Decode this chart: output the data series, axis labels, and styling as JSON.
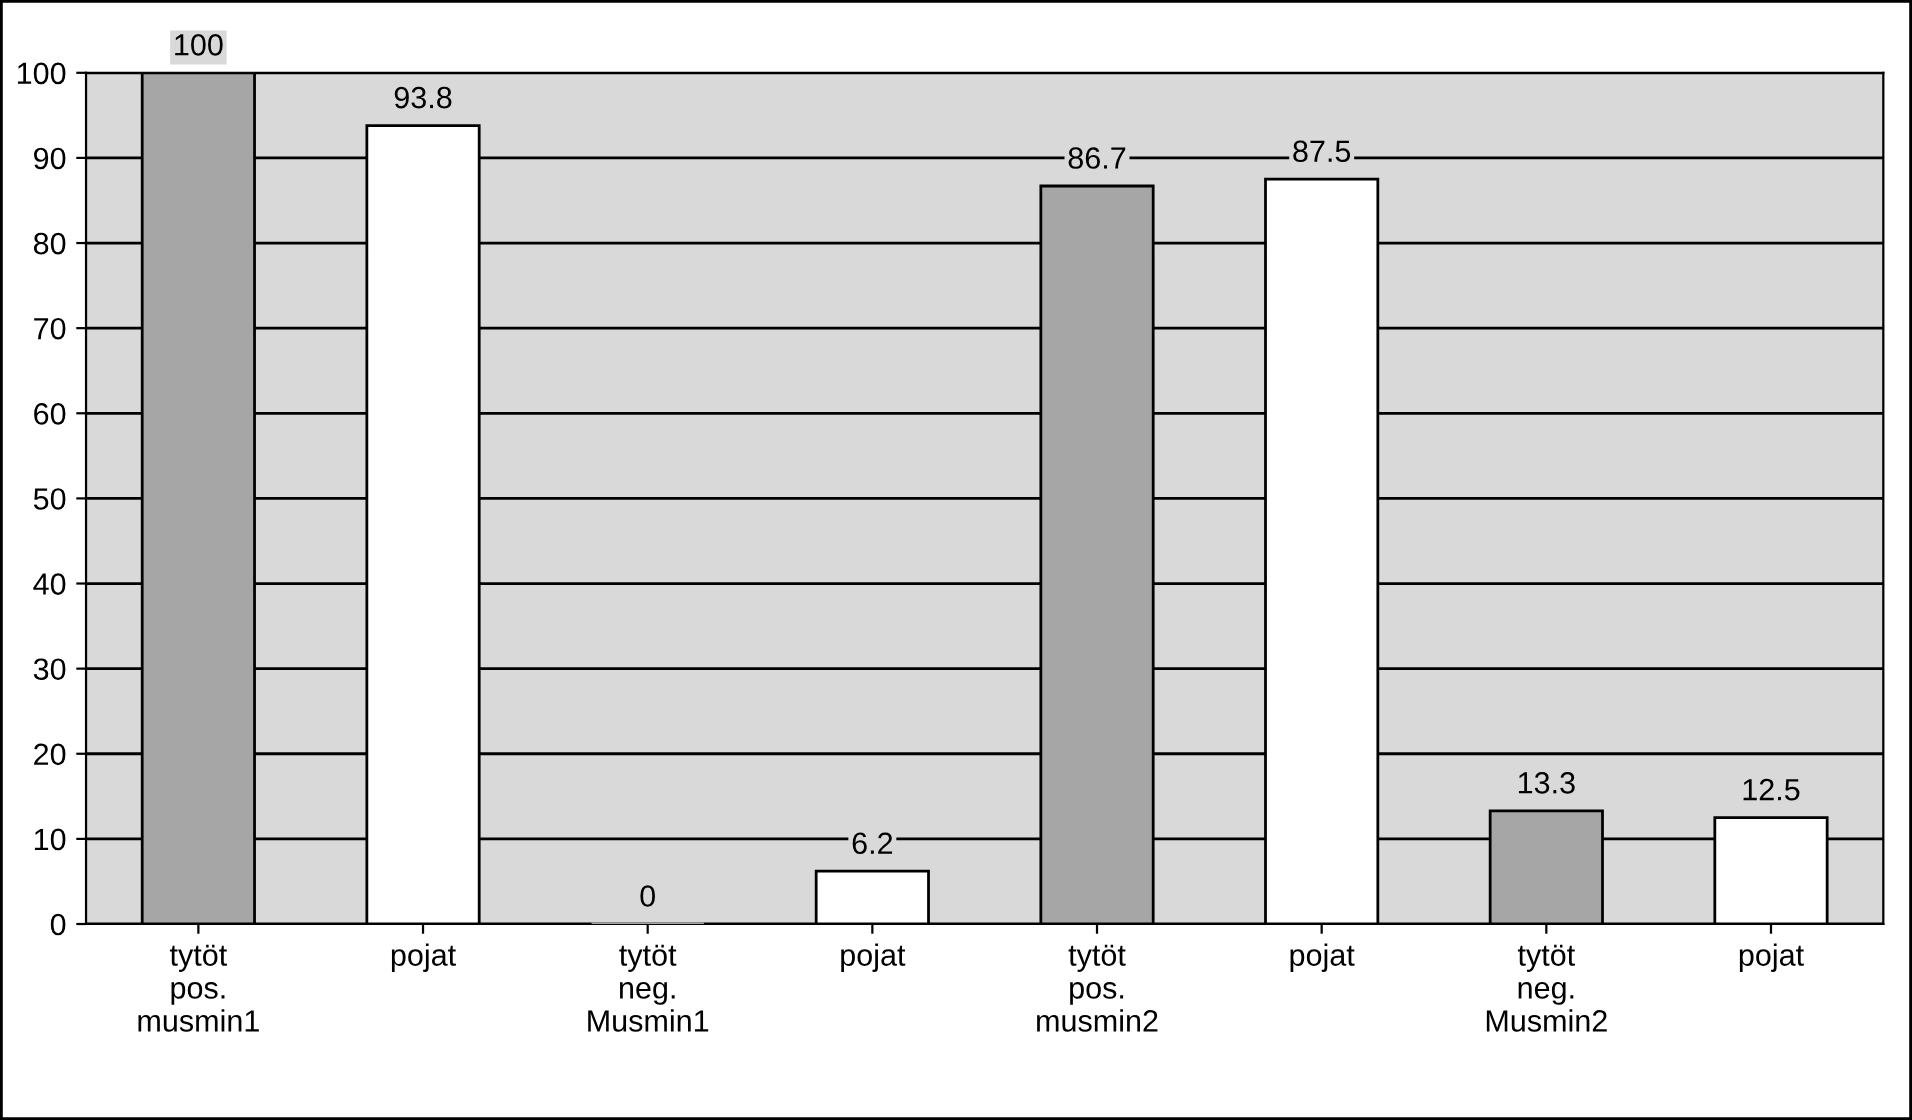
{
  "chart_data": {
    "type": "bar",
    "categories": [
      "tytöt\npos.\nmusmin1",
      "pojat",
      "tytöt\nneg.\nMusmin1",
      "pojat",
      "tytöt\npos.\nmusmin2",
      "pojat",
      "tytöt\nneg.\nMusmin2",
      "pojat"
    ],
    "values": [
      100,
      93.8,
      0,
      6.2,
      86.7,
      87.5,
      13.3,
      12.5
    ],
    "colors": [
      "#a6a6a6",
      "#ffffff",
      "#a6a6a6",
      "#ffffff",
      "#a6a6a6",
      "#ffffff",
      "#a6a6a6",
      "#ffffff"
    ],
    "ylim": [
      0,
      100
    ],
    "yticks": [
      0,
      10,
      20,
      30,
      40,
      50,
      60,
      70,
      80,
      90,
      100
    ],
    "grid": "y",
    "data_labels": true,
    "legend": false
  }
}
